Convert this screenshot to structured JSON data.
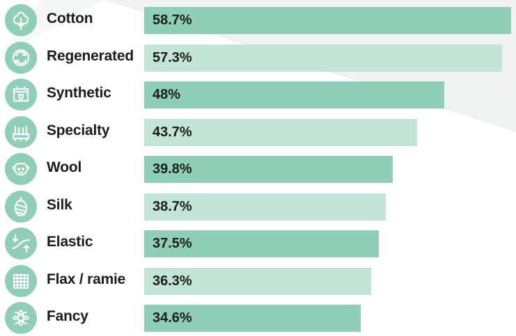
{
  "chart_data": {
    "type": "bar",
    "orientation": "horizontal",
    "categories": [
      "Cotton",
      "Regenerated",
      "Synthetic",
      "Specialty",
      "Wool",
      "Silk",
      "Elastic",
      "Flax / ramie",
      "Fancy"
    ],
    "values": [
      58.7,
      57.3,
      48,
      43.7,
      39.8,
      38.7,
      37.5,
      36.3,
      34.6
    ],
    "value_labels": [
      "58.7%",
      "57.3%",
      "48%",
      "43.7%",
      "39.8%",
      "38.7%",
      "37.5%",
      "36.3%",
      "34.6%"
    ],
    "icons": [
      "cotton-icon",
      "regenerated-icon",
      "synthetic-icon",
      "specialty-icon",
      "wool-icon",
      "silk-icon",
      "elastic-icon",
      "flax-ramie-icon",
      "fancy-icon"
    ],
    "title": "",
    "xlabel": "",
    "ylabel": "",
    "xlim": [
      0,
      58.7
    ],
    "grid": false,
    "colors": {
      "bar_dark": "#8fcfb7",
      "bar_light": "#c3e5d8",
      "icon_badge": "#8fcfb7",
      "text": "#1c1c1c"
    }
  }
}
